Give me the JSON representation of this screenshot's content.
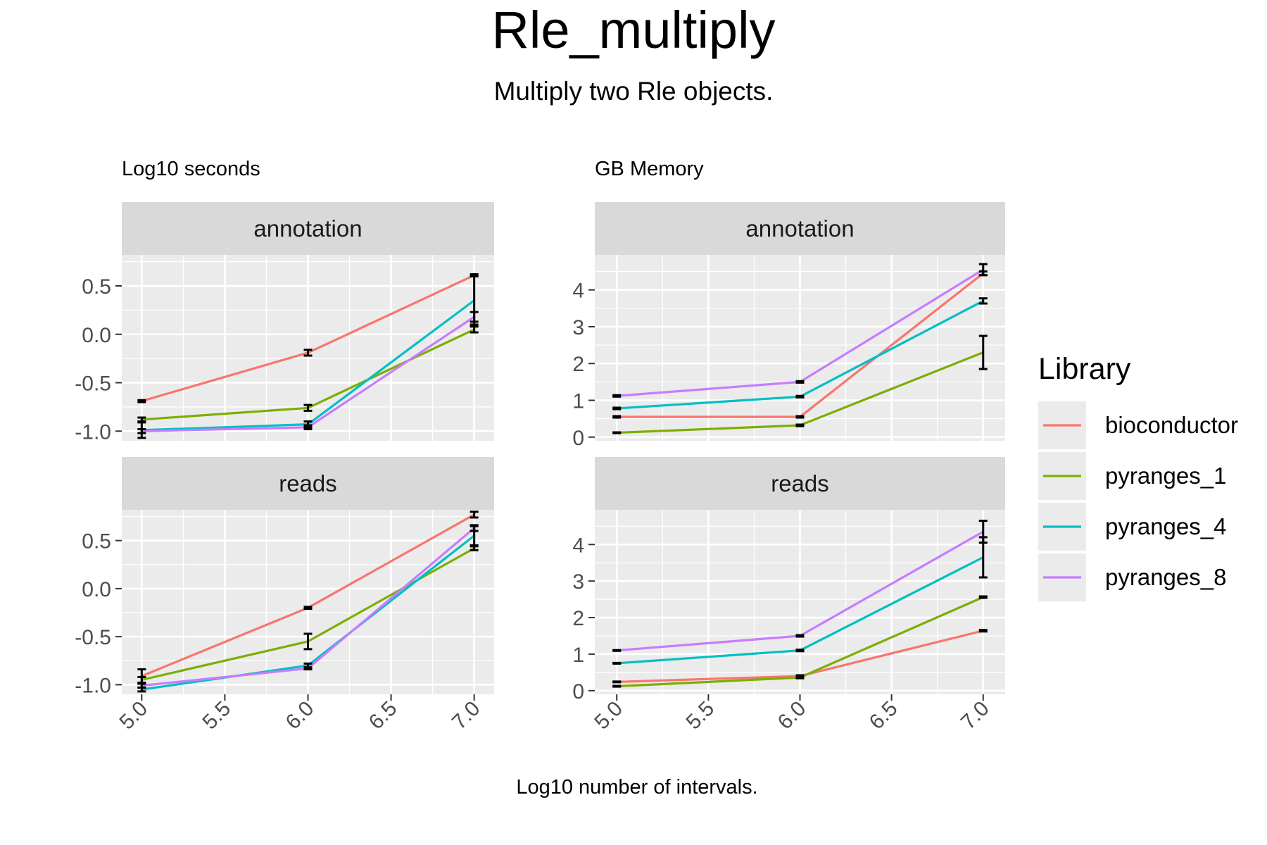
{
  "title": "Rle_multiply",
  "subtitle": "Multiply two Rle objects.",
  "xlabel": "Log10 number of intervals.",
  "legend": {
    "title": "Library",
    "placement": "right",
    "items": [
      "bioconductor",
      "pyranges_1",
      "pyranges_4",
      "pyranges_8"
    ]
  },
  "colors": {
    "bioconductor": "#F8766D",
    "pyranges_1": "#7CAE00",
    "pyranges_4": "#00BFC4",
    "pyranges_8": "#C77CFF",
    "panel_bg": "#EBEBEB",
    "strip_bg": "#D9D9D9",
    "grid": "#FFFFFF",
    "errorbar": "#000000"
  },
  "chart_data": [
    {
      "type": "line",
      "group": "Log10 seconds",
      "facet": "annotation",
      "x": [
        5.0,
        6.0,
        7.0
      ],
      "xticks": [
        "5.0",
        "5.5",
        "6.0",
        "6.5",
        "7.0"
      ],
      "xlim": [
        4.88,
        7.12
      ],
      "ylim": [
        -1.1,
        0.82
      ],
      "yticks": [
        "-1.0",
        "-0.5",
        "0.0",
        "0.5"
      ],
      "series": [
        {
          "name": "bioconductor",
          "values": [
            -0.69,
            -0.19,
            0.61
          ],
          "err": [
            0.01,
            0.03,
            0.01
          ]
        },
        {
          "name": "pyranges_1",
          "values": [
            -0.88,
            -0.76,
            0.05
          ],
          "err": [
            0.02,
            0.03,
            0.03
          ]
        },
        {
          "name": "pyranges_4",
          "values": [
            -0.99,
            -0.93,
            0.35
          ],
          "err": [
            0.08,
            0.03,
            0.25
          ]
        },
        {
          "name": "pyranges_8",
          "values": [
            -1.0,
            -0.96,
            0.18
          ],
          "err": [
            0.02,
            0.02,
            0.05
          ]
        }
      ]
    },
    {
      "type": "line",
      "group": "Log10 seconds",
      "facet": "reads",
      "x": [
        5.0,
        6.0,
        7.0
      ],
      "xticks": [
        "5.0",
        "5.5",
        "6.0",
        "6.5",
        "7.0"
      ],
      "xlim": [
        4.88,
        7.12
      ],
      "ylim": [
        -1.1,
        0.82
      ],
      "yticks": [
        "-1.0",
        "-0.5",
        "0.0",
        "0.5"
      ],
      "series": [
        {
          "name": "bioconductor",
          "values": [
            -0.91,
            -0.2,
            0.77
          ],
          "err": [
            0.07,
            0.01,
            0.03
          ]
        },
        {
          "name": "pyranges_1",
          "values": [
            -0.95,
            -0.55,
            0.42
          ],
          "err": [
            0.03,
            0.08,
            0.02
          ]
        },
        {
          "name": "pyranges_4",
          "values": [
            -1.05,
            -0.8,
            0.55
          ],
          "err": [
            0.02,
            0.02,
            0.1
          ]
        },
        {
          "name": "pyranges_8",
          "values": [
            -1.01,
            -0.83,
            0.63
          ],
          "err": [
            0.02,
            0.01,
            0.03
          ]
        }
      ]
    },
    {
      "type": "line",
      "group": "GB Memory",
      "facet": "annotation",
      "x": [
        5.0,
        6.0,
        7.0
      ],
      "xticks": [
        "5.0",
        "5.5",
        "6.0",
        "6.5",
        "7.0"
      ],
      "xlim": [
        4.88,
        7.12
      ],
      "ylim": [
        -0.1,
        4.95
      ],
      "yticks": [
        "0",
        "1",
        "2",
        "3",
        "4"
      ],
      "series": [
        {
          "name": "bioconductor",
          "values": [
            0.55,
            0.55,
            4.45
          ],
          "err": [
            0.02,
            0.02,
            0.05
          ]
        },
        {
          "name": "pyranges_1",
          "values": [
            0.12,
            0.32,
            2.3
          ],
          "err": [
            0.01,
            0.02,
            0.45
          ]
        },
        {
          "name": "pyranges_4",
          "values": [
            0.78,
            1.1,
            3.7
          ],
          "err": [
            0.02,
            0.02,
            0.07
          ]
        },
        {
          "name": "pyranges_8",
          "values": [
            1.12,
            1.5,
            4.55
          ],
          "err": [
            0.02,
            0.02,
            0.15
          ]
        }
      ]
    },
    {
      "type": "line",
      "group": "GB Memory",
      "facet": "reads",
      "x": [
        5.0,
        6.0,
        7.0
      ],
      "xticks": [
        "5.0",
        "5.5",
        "6.0",
        "6.5",
        "7.0"
      ],
      "xlim": [
        4.88,
        7.12
      ],
      "ylim": [
        -0.1,
        4.95
      ],
      "yticks": [
        "0",
        "1",
        "2",
        "3",
        "4"
      ],
      "series": [
        {
          "name": "bioconductor",
          "values": [
            0.24,
            0.4,
            1.64
          ],
          "err": [
            0.01,
            0.02,
            0.02
          ]
        },
        {
          "name": "pyranges_1",
          "values": [
            0.12,
            0.36,
            2.56
          ],
          "err": [
            0.01,
            0.02,
            0.02
          ]
        },
        {
          "name": "pyranges_4",
          "values": [
            0.75,
            1.1,
            3.65
          ],
          "err": [
            0.01,
            0.02,
            0.55
          ]
        },
        {
          "name": "pyranges_8",
          "values": [
            1.1,
            1.5,
            4.35
          ],
          "err": [
            0.01,
            0.02,
            0.3
          ]
        }
      ]
    }
  ]
}
